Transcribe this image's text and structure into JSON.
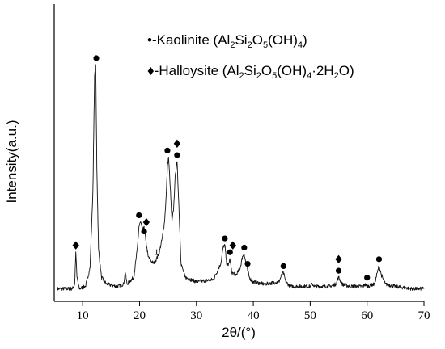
{
  "chart_data": {
    "type": "line",
    "xlabel": "2θ/(°)",
    "ylabel": "Intensity(a.u.)",
    "xlim": [
      5,
      70
    ],
    "xticks": [
      "10",
      "20",
      "30",
      "40",
      "50",
      "60",
      "70"
    ],
    "y_tick_labels": "none",
    "legend": {
      "placement": "top-center",
      "kaolinite": {
        "marker": "circle",
        "parts": [
          "•-Kaolinite (Al",
          "2",
          "Si",
          "2",
          "O",
          "5",
          "(OH)",
          "4",
          ")"
        ]
      },
      "halloysite": {
        "marker": "diamond",
        "parts": [
          "♦-Halloysite (Al",
          "2",
          "Si",
          "2",
          "O",
          "5",
          "(OH)",
          "4",
          "·2H",
          "2",
          "O)"
        ]
      }
    },
    "annotation": "1",
    "series": [
      {
        "x": [
          5.5,
          8.2,
          8.6,
          8.8,
          9.0,
          9.4,
          10.5,
          11.3,
          11.8,
          12.1,
          12.3,
          12.5,
          12.8,
          13.3,
          14.2,
          16.0,
          17.2,
          17.5,
          17.8,
          19.0,
          19.6,
          19.9,
          20.2,
          20.5,
          20.8,
          21.1,
          21.5,
          22.0,
          22.5,
          23.0,
          23.5,
          24.0,
          24.4,
          24.7,
          24.9,
          25.1,
          25.4,
          25.7,
          26.0,
          26.3,
          26.6,
          26.9,
          27.3,
          28.0,
          30.0,
          33.0,
          34.3,
          34.7,
          35.0,
          35.3,
          35.6,
          35.9,
          36.2,
          37.0,
          37.7,
          38.1,
          38.4,
          38.7,
          39.0,
          39.3,
          39.8,
          42.0,
          44.5,
          45.0,
          45.3,
          45.7,
          46.5,
          50.0,
          50.4,
          50.8,
          53.5,
          54.5,
          55.0,
          55.6,
          57.0,
          59.3,
          59.6,
          60.0,
          61.3,
          61.8,
          62.1,
          62.5,
          63.2,
          65.0,
          68.0,
          70.0
        ],
        "y": [
          3,
          3,
          5,
          19,
          8,
          3,
          4,
          12,
          45,
          95,
          100,
          55,
          20,
          8,
          5,
          4,
          5,
          10,
          5,
          8,
          20,
          30,
          32,
          28,
          30,
          24,
          17,
          15,
          14,
          16,
          19,
          25,
          32,
          44,
          56,
          60,
          47,
          32,
          38,
          53,
          58,
          40,
          14,
          8,
          6,
          7,
          14,
          21,
          22,
          14,
          13,
          16,
          10,
          9,
          12,
          17,
          18,
          14,
          11,
          8,
          6,
          5,
          6,
          9,
          10,
          6,
          4,
          4,
          5,
          4,
          4,
          5,
          8,
          5,
          4,
          4,
          5,
          4,
          5,
          10,
          13,
          9,
          5,
          4,
          3,
          3
        ]
      }
    ],
    "kaolinite_peaks": [
      [
        12.4,
        100
      ],
      [
        19.9,
        32
      ],
      [
        20.8,
        25
      ],
      [
        24.9,
        60
      ],
      [
        26.6,
        58
      ],
      [
        35.0,
        22
      ],
      [
        35.9,
        16
      ],
      [
        38.4,
        18
      ],
      [
        39.0,
        11
      ],
      [
        45.3,
        10
      ],
      [
        55.0,
        8
      ],
      [
        60.0,
        5
      ],
      [
        62.1,
        13
      ]
    ],
    "halloysite_peaks": [
      [
        8.8,
        19
      ],
      [
        21.2,
        29
      ],
      [
        26.6,
        63
      ],
      [
        36.4,
        19
      ],
      [
        55.0,
        13
      ]
    ]
  }
}
